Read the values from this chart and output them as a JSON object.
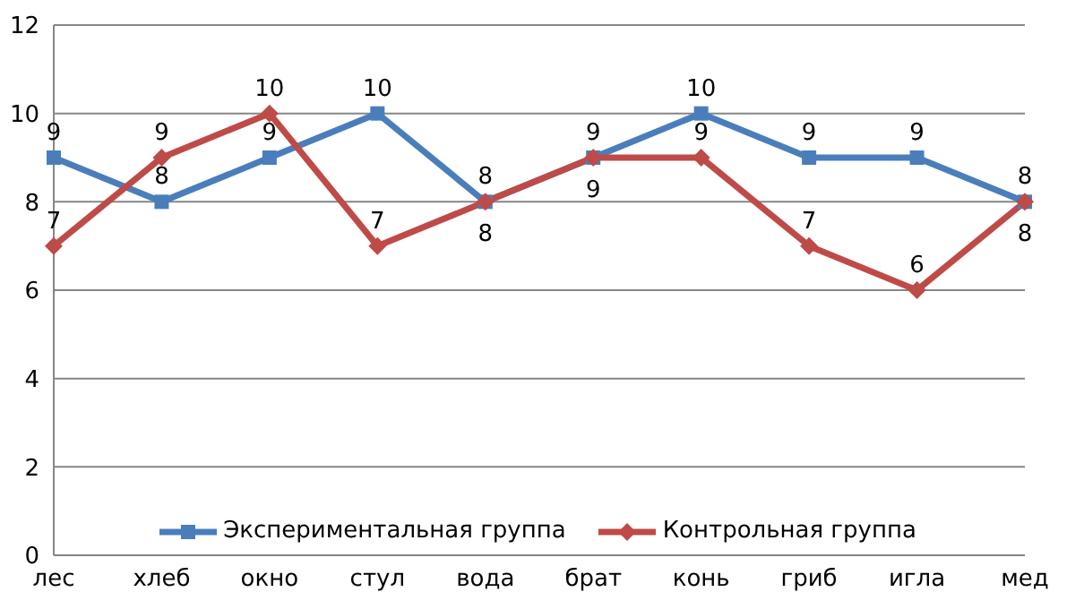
{
  "chart_data": {
    "type": "line",
    "categories": [
      "лес",
      "хлеб",
      "окно",
      "стул",
      "вода",
      "брат",
      "конь",
      "гриб",
      "игла",
      "мед"
    ],
    "series": [
      {
        "name": "Экспериментальная группа",
        "color": "#4a7ebb",
        "marker": "square",
        "values": [
          9,
          8,
          9,
          10,
          8,
          9,
          10,
          9,
          9,
          8
        ]
      },
      {
        "name": "Контрольная группа",
        "color": "#be4b48",
        "marker": "diamond",
        "values": [
          7,
          9,
          10,
          7,
          8,
          9,
          9,
          7,
          6,
          8
        ]
      }
    ],
    "ylim": [
      0,
      12
    ],
    "yticks": [
      0,
      2,
      4,
      6,
      8,
      10,
      12
    ],
    "grid": "y",
    "legend": "bottom",
    "data_labels": true
  }
}
